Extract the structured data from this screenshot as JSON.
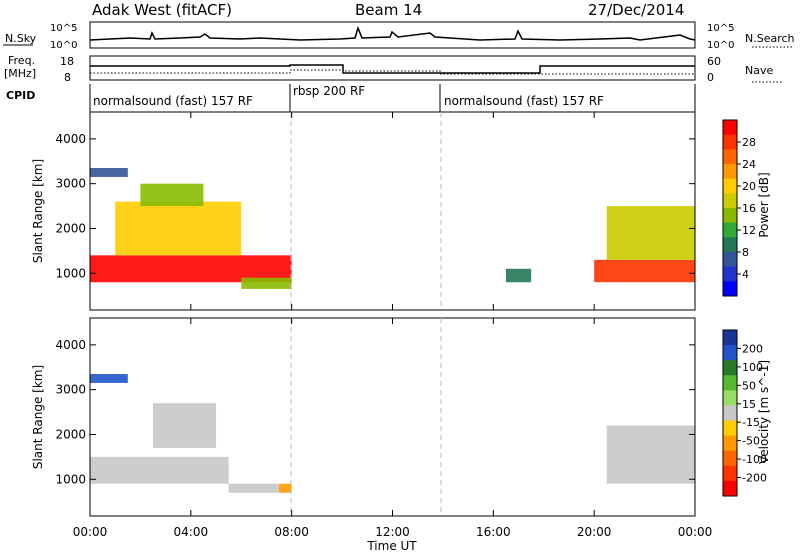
{
  "header": {
    "station": "Adak West (fitACF)",
    "beam": "Beam 14",
    "date": "27/Dec/2014"
  },
  "top_panels": {
    "nsky_label": "N.Sky",
    "nsky_ticks": [
      "10^5",
      "10^0"
    ],
    "nsearch_label": "N.Search",
    "freq_label": "Freq.",
    "freq_unit": "[MHz]",
    "freq_ticks": [
      "18",
      "8"
    ],
    "nave_label": "Nave",
    "nave_ticks": [
      "60",
      "0"
    ],
    "cpid_label": "CPID",
    "cpid_segments": [
      "normalsound (fast) 157 RF",
      "rbsp 200 RF",
      "normalsound (fast) 157 RF"
    ]
  },
  "power_colorbar": {
    "label": "Power [dB]",
    "ticks": [
      "28",
      "24",
      "20",
      "16",
      "12",
      "8",
      "4"
    ],
    "colors": [
      "#ff0000",
      "#ff3300",
      "#ff6600",
      "#ff9900",
      "#ffcc00",
      "#cccc00",
      "#88bb00",
      "#33aa33",
      "#227755",
      "#335599",
      "#2233cc",
      "#0000ff"
    ]
  },
  "velocity_colorbar": {
    "label": "Velocity [m s^-1]",
    "ticks": [
      "200",
      "100",
      "50",
      "15",
      "-15",
      "-50",
      "-100",
      "-200"
    ],
    "colors": [
      "#1a3399",
      "#2255cc",
      "#2a7a2a",
      "#55bb33",
      "#99dd66",
      "#c8c8c8",
      "#ffcc00",
      "#ff9900",
      "#ff6600",
      "#ff3300",
      "#ff0000"
    ]
  },
  "axes": {
    "y_label": "Slant Range [km]",
    "y_ticks": [
      "4000",
      "3000",
      "2000",
      "1000"
    ],
    "x_label": "Time UT",
    "x_ticks": [
      "00:00",
      "04:00",
      "08:00",
      "12:00",
      "16:00",
      "20:00",
      "00:00"
    ]
  },
  "chart_data": [
    {
      "type": "heatmap",
      "title": "",
      "xlabel": "",
      "ylabel": "Slant Range [km]",
      "xlim": [
        0,
        24
      ],
      "ylim": [
        180,
        4600
      ],
      "z_label": "Power [dB]",
      "z_range": [
        0,
        30
      ],
      "blocks": [
        {
          "t": [
            0,
            8
          ],
          "r": [
            800,
            1400
          ],
          "z": 28
        },
        {
          "t": [
            1,
            6
          ],
          "r": [
            1400,
            2600
          ],
          "z": 18
        },
        {
          "t": [
            2,
            4.5
          ],
          "r": [
            2500,
            3000
          ],
          "z": 14
        },
        {
          "t": [
            6,
            8
          ],
          "r": [
            650,
            900
          ],
          "z": 14
        },
        {
          "t": [
            20,
            24
          ],
          "r": [
            800,
            1300
          ],
          "z": 26
        },
        {
          "t": [
            20.5,
            24
          ],
          "r": [
            1300,
            2500
          ],
          "z": 16
        },
        {
          "t": [
            16.5,
            17.5
          ],
          "r": [
            800,
            1100
          ],
          "z": 10
        },
        {
          "t": [
            0,
            1.5
          ],
          "r": [
            3150,
            3350
          ],
          "z": 6
        }
      ]
    },
    {
      "type": "heatmap",
      "title": "",
      "xlabel": "Time UT",
      "ylabel": "Slant Range [km]",
      "xlim": [
        0,
        24
      ],
      "ylim": [
        180,
        4600
      ],
      "z_label": "Velocity [m s^-1]",
      "z_range": [
        -200,
        200
      ],
      "blocks": [
        {
          "t": [
            0,
            5.5
          ],
          "r": [
            900,
            1500
          ],
          "z": 0
        },
        {
          "t": [
            2.5,
            5
          ],
          "r": [
            1700,
            2700
          ],
          "z": 5
        },
        {
          "t": [
            5.5,
            7.5
          ],
          "r": [
            700,
            900
          ],
          "z": 0
        },
        {
          "t": [
            7.5,
            8
          ],
          "r": [
            700,
            900
          ],
          "z": -60
        },
        {
          "t": [
            20.5,
            24
          ],
          "r": [
            900,
            2200
          ],
          "z": 0
        },
        {
          "t": [
            0,
            1.5
          ],
          "r": [
            3150,
            3350
          ],
          "z": 150
        }
      ]
    }
  ]
}
